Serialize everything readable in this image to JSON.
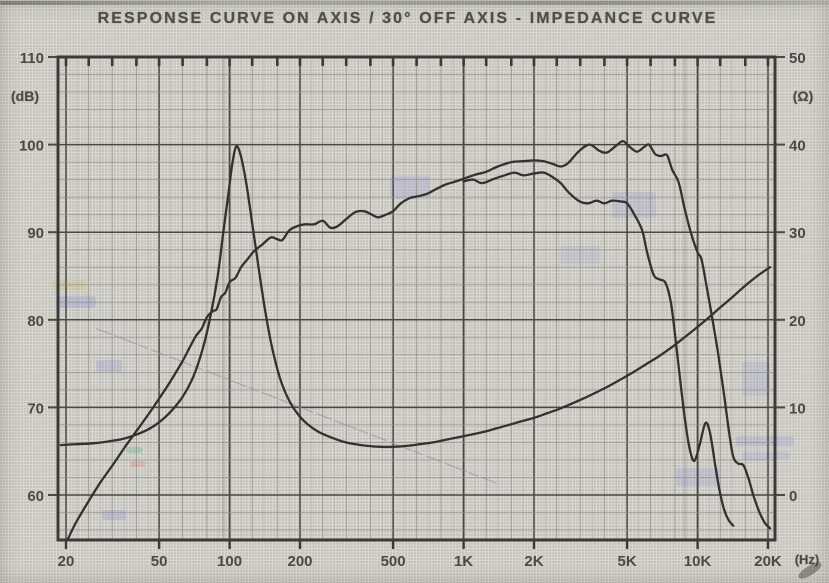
{
  "title": "RESPONSE CURVE ON AXIS / 30° OFF AXIS - IMPEDANCE CURVE",
  "colors": {
    "paper": "#d8d7d1",
    "curve_ink": "#33322f",
    "grid_major": "#4a4944",
    "grid_minor": "#8e8d86",
    "axis_border": "#3b3a36",
    "label_ink": "#4b4a46",
    "artifact_line": "#8f8f9a"
  },
  "chart_data": {
    "type": "line",
    "title": "RESPONSE CURVE ON AXIS / 30° OFF AXIS - IMPEDANCE CURVE",
    "x_axis": {
      "label": "(Hz)",
      "scale": "log",
      "min": 20,
      "max": 20000,
      "ticks": [
        {
          "value": 20,
          "label": "20"
        },
        {
          "value": 50,
          "label": "50"
        },
        {
          "value": 100,
          "label": "100"
        },
        {
          "value": 200,
          "label": "200"
        },
        {
          "value": 500,
          "label": "500"
        },
        {
          "value": 1000,
          "label": "1K"
        },
        {
          "value": 2000,
          "label": "2K"
        },
        {
          "value": 5000,
          "label": "5K"
        },
        {
          "value": 10000,
          "label": "10K"
        },
        {
          "value": 20000,
          "label": "20K"
        }
      ],
      "minor_grid_multipliers_per_decade": [
        1,
        1.25,
        1.6,
        2,
        2.5,
        3.15,
        4,
        5,
        6.3,
        8
      ],
      "fine_grid_multipliers_per_decade": [
        1.12,
        1.4,
        1.8,
        2.24,
        2.8,
        3.55,
        4.5,
        5.6,
        7.1,
        9
      ]
    },
    "y_axis_left": {
      "label": "(dB)",
      "min": 60,
      "max": 110,
      "minor_step": 2,
      "ticks": [
        {
          "value": 110,
          "label": "110"
        },
        {
          "value": 100,
          "label": "100"
        },
        {
          "value": 90,
          "label": "90"
        },
        {
          "value": 80,
          "label": "80"
        },
        {
          "value": 70,
          "label": "70"
        },
        {
          "value": 60,
          "label": "60"
        }
      ]
    },
    "y_axis_right": {
      "label": "(Ω)",
      "min": 0,
      "max": 50,
      "ticks": [
        {
          "value": 50,
          "label": "50"
        },
        {
          "value": 40,
          "label": "40"
        },
        {
          "value": 30,
          "label": "30"
        },
        {
          "value": 20,
          "label": "20"
        },
        {
          "value": 10,
          "label": "10"
        },
        {
          "value": 0,
          "label": "0"
        }
      ]
    },
    "grid": "on",
    "legend": "none",
    "series": [
      {
        "name": "response-on-axis",
        "axis": "left",
        "unit": "dB",
        "points": [
          [
            19,
            53.2
          ],
          [
            20,
            54.5
          ],
          [
            22,
            56.8
          ],
          [
            25,
            59.3
          ],
          [
            28,
            61.4
          ],
          [
            32,
            63.6
          ],
          [
            36,
            65.6
          ],
          [
            40,
            67.3
          ],
          [
            45,
            69.2
          ],
          [
            50,
            71
          ],
          [
            56,
            73
          ],
          [
            63,
            75.3
          ],
          [
            68,
            77
          ],
          [
            72,
            78.2
          ],
          [
            76,
            79
          ],
          [
            80,
            80.3
          ],
          [
            85,
            81
          ],
          [
            88,
            81.2
          ],
          [
            92,
            82.6
          ],
          [
            96,
            83.1
          ],
          [
            100,
            84.3
          ],
          [
            106,
            84.8
          ],
          [
            112,
            86
          ],
          [
            120,
            87
          ],
          [
            128,
            87.9
          ],
          [
            138,
            88.6
          ],
          [
            150,
            89.4
          ],
          [
            160,
            89.2
          ],
          [
            168,
            89.1
          ],
          [
            180,
            90.2
          ],
          [
            195,
            90.7
          ],
          [
            210,
            90.9
          ],
          [
            230,
            90.9
          ],
          [
            250,
            91.3
          ],
          [
            270,
            90.5
          ],
          [
            290,
            90.7
          ],
          [
            315,
            91.5
          ],
          [
            345,
            92.3
          ],
          [
            375,
            92.4
          ],
          [
            400,
            92.1
          ],
          [
            430,
            91.7
          ],
          [
            465,
            92
          ],
          [
            500,
            92.4
          ],
          [
            540,
            93.3
          ],
          [
            590,
            93.9
          ],
          [
            640,
            94.1
          ],
          [
            700,
            94.4
          ],
          [
            760,
            94.9
          ],
          [
            830,
            95.4
          ],
          [
            900,
            95.7
          ],
          [
            1000,
            96.1
          ],
          [
            1100,
            96.5
          ],
          [
            1250,
            96.9
          ],
          [
            1400,
            97.5
          ],
          [
            1600,
            98
          ],
          [
            1800,
            98.1
          ],
          [
            2000,
            98.2
          ],
          [
            2200,
            98.1
          ],
          [
            2400,
            97.8
          ],
          [
            2600,
            97.5
          ],
          [
            2800,
            97.9
          ],
          [
            3100,
            99.2
          ],
          [
            3450,
            100
          ],
          [
            3800,
            99.3
          ],
          [
            4100,
            99.1
          ],
          [
            4500,
            99.9
          ],
          [
            4800,
            100.4
          ],
          [
            5100,
            99.8
          ],
          [
            5500,
            99.2
          ],
          [
            5900,
            99.7
          ],
          [
            6200,
            100
          ],
          [
            6600,
            98.9
          ],
          [
            7000,
            98.7
          ],
          [
            7400,
            98.8
          ],
          [
            7800,
            97.1
          ],
          [
            8300,
            95.7
          ],
          [
            8800,
            92.7
          ],
          [
            9400,
            89.8
          ],
          [
            10000,
            87.7
          ],
          [
            10400,
            86.9
          ],
          [
            10900,
            84
          ],
          [
            11500,
            80.5
          ],
          [
            12200,
            76.4
          ],
          [
            12900,
            72
          ],
          [
            13600,
            67.4
          ],
          [
            14200,
            64.4
          ],
          [
            14900,
            63.6
          ],
          [
            15700,
            63.4
          ],
          [
            16500,
            61.9
          ],
          [
            17400,
            59.8
          ],
          [
            18400,
            58
          ],
          [
            19400,
            56.8
          ],
          [
            20400,
            56.2
          ]
        ]
      },
      {
        "name": "response-30deg-off-axis",
        "axis": "left",
        "unit": "dB",
        "points": [
          [
            1000,
            95.8
          ],
          [
            1100,
            96
          ],
          [
            1200,
            95.6
          ],
          [
            1350,
            96.1
          ],
          [
            1500,
            96.5
          ],
          [
            1650,
            96.8
          ],
          [
            1800,
            96.5
          ],
          [
            2000,
            96.7
          ],
          [
            2200,
            96.8
          ],
          [
            2400,
            96.3
          ],
          [
            2600,
            95.6
          ],
          [
            2800,
            94.6
          ],
          [
            3100,
            93.6
          ],
          [
            3400,
            93.3
          ],
          [
            3700,
            93.6
          ],
          [
            4000,
            93.3
          ],
          [
            4300,
            93.6
          ],
          [
            4700,
            93.5
          ],
          [
            5000,
            93.3
          ],
          [
            5400,
            91.9
          ],
          [
            5800,
            90.2
          ],
          [
            6100,
            87.6
          ],
          [
            6500,
            85.1
          ],
          [
            6900,
            84.6
          ],
          [
            7300,
            84.2
          ],
          [
            7700,
            81.9
          ],
          [
            8100,
            77.2
          ],
          [
            8500,
            72.3
          ],
          [
            8900,
            68
          ],
          [
            9300,
            65
          ],
          [
            9700,
            63.9
          ],
          [
            10200,
            65.7
          ],
          [
            10800,
            68.2
          ],
          [
            11300,
            67.1
          ],
          [
            11900,
            63.4
          ],
          [
            12400,
            60.6
          ],
          [
            13000,
            58.3
          ],
          [
            13600,
            57.1
          ],
          [
            14200,
            56.5
          ]
        ]
      },
      {
        "name": "impedance",
        "axis": "right",
        "unit": "ohm",
        "points": [
          [
            19,
            5.7
          ],
          [
            22,
            5.8
          ],
          [
            26,
            5.9
          ],
          [
            30,
            6.1
          ],
          [
            35,
            6.4
          ],
          [
            40,
            6.9
          ],
          [
            45,
            7.5
          ],
          [
            50,
            8.3
          ],
          [
            56,
            9.5
          ],
          [
            63,
            11.2
          ],
          [
            70,
            13.5
          ],
          [
            77,
            16.8
          ],
          [
            83,
            20.5
          ],
          [
            89,
            25
          ],
          [
            94,
            30
          ],
          [
            99,
            34.5
          ],
          [
            103,
            38
          ],
          [
            107,
            39.8
          ],
          [
            112,
            38.6
          ],
          [
            118,
            35.5
          ],
          [
            125,
            31
          ],
          [
            133,
            26
          ],
          [
            142,
            21
          ],
          [
            152,
            16.8
          ],
          [
            164,
            13.4
          ],
          [
            178,
            11
          ],
          [
            195,
            9.3
          ],
          [
            215,
            8.1
          ],
          [
            240,
            7.2
          ],
          [
            270,
            6.6
          ],
          [
            305,
            6.1
          ],
          [
            345,
            5.8
          ],
          [
            390,
            5.6
          ],
          [
            440,
            5.5
          ],
          [
            500,
            5.5
          ],
          [
            570,
            5.6
          ],
          [
            650,
            5.8
          ],
          [
            740,
            6
          ],
          [
            840,
            6.3
          ],
          [
            950,
            6.6
          ],
          [
            1080,
            6.9
          ],
          [
            1220,
            7.2
          ],
          [
            1380,
            7.6
          ],
          [
            1560,
            8
          ],
          [
            1760,
            8.4
          ],
          [
            2000,
            8.8
          ],
          [
            2260,
            9.3
          ],
          [
            2550,
            9.8
          ],
          [
            2880,
            10.4
          ],
          [
            3250,
            11
          ],
          [
            3680,
            11.7
          ],
          [
            4150,
            12.4
          ],
          [
            4700,
            13.2
          ],
          [
            5300,
            14
          ],
          [
            6000,
            14.9
          ],
          [
            6800,
            15.8
          ],
          [
            7700,
            16.8
          ],
          [
            8700,
            17.9
          ],
          [
            9800,
            19
          ],
          [
            11000,
            20.1
          ],
          [
            12500,
            21.4
          ],
          [
            14100,
            22.6
          ],
          [
            16000,
            23.9
          ],
          [
            18000,
            25
          ],
          [
            20400,
            26
          ]
        ]
      }
    ],
    "scan_artifact_line": {
      "from_hz_db": [
        27,
        79
      ],
      "to_hz_db": [
        1400,
        61.3
      ]
    }
  }
}
